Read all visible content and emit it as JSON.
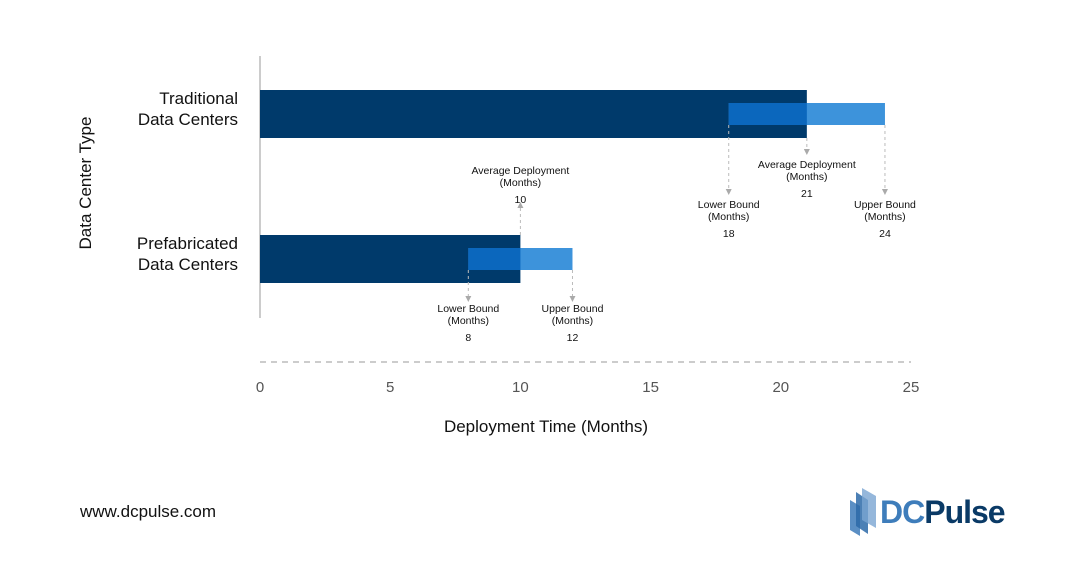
{
  "chart_data": {
    "type": "bar",
    "orientation": "horizontal",
    "xlabel": "Deployment Time (Months)",
    "ylabel": "Data Center Type",
    "xlim": [
      0,
      25
    ],
    "xticks": [
      0,
      5,
      10,
      15,
      20,
      25
    ],
    "grid": false,
    "categories": [
      [
        "Traditional",
        "Data Centers"
      ],
      [
        "Prefabricated",
        "Data Centers"
      ]
    ],
    "series": [
      {
        "name": "Average Deployment",
        "values": [
          21,
          10
        ]
      },
      {
        "name": "Lower Bound",
        "values": [
          18,
          8
        ]
      },
      {
        "name": "Upper Bound",
        "values": [
          24,
          12
        ]
      }
    ],
    "annotations": {
      "average": [
        "Average Deployment",
        "(Months)"
      ],
      "lower": [
        "Lower Bound",
        "(Months)"
      ],
      "upper": [
        "Upper Bound",
        "(Months)"
      ]
    },
    "colors": {
      "average": "#003a6b",
      "range": "#3d93db",
      "overlap": "#0b67bd",
      "axis": "#999999"
    }
  },
  "footer": {
    "website": "www.dcpulse.com",
    "logo_dc": "DC",
    "logo_pulse": "Pulse"
  },
  "logo_colors": {
    "dc": "#3e7dbb",
    "pulse": "#0a3a66"
  }
}
